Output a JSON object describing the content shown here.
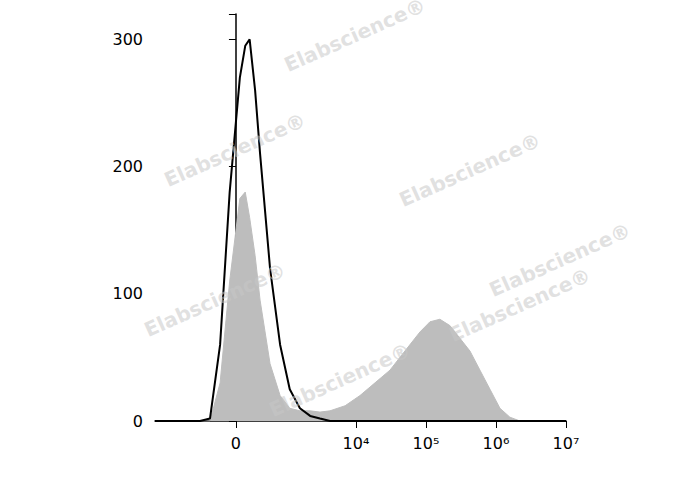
{
  "chart_data": {
    "type": "line",
    "watermark": "Elabscience®",
    "x": [
      -2750,
      -570,
      -370,
      -210,
      -80,
      50,
      120,
      180,
      260,
      340,
      530,
      780,
      1100,
      1560,
      2200,
      3050,
      4250,
      7000,
      11400,
      18700,
      30600,
      50000,
      82000,
      114000,
      158000,
      220000,
      306000,
      425000,
      590000,
      820000,
      1140000,
      1580000,
      2200000,
      4250000,
      10000000
    ],
    "series": [
      {
        "type": "area",
        "color": "#bdbdbd",
        "values": [
          0,
          0,
          0,
          30,
          110,
          175,
          180,
          160,
          130,
          95,
          45,
          20,
          10,
          8,
          8,
          7,
          8,
          12,
          20,
          30,
          40,
          55,
          70,
          78,
          80,
          75,
          65,
          55,
          40,
          25,
          10,
          3,
          0,
          0,
          0
        ]
      },
      {
        "type": "line",
        "color": "#000000",
        "values": [
          0,
          0,
          2,
          60,
          180,
          270,
          295,
          300,
          260,
          210,
          120,
          60,
          25,
          10,
          4,
          2,
          0,
          0,
          0,
          0,
          0,
          0,
          0,
          0,
          0,
          0,
          0,
          0,
          0,
          0,
          0,
          0,
          0,
          0,
          0
        ]
      }
    ],
    "xlim": [
      -2750,
      10000000
    ],
    "xticks": [
      0,
      {
        "value": 10000,
        "label": "10⁴"
      },
      {
        "value": 100000,
        "label": "10⁵"
      },
      {
        "value": 1000000,
        "label": "10⁶"
      },
      {
        "value": 10000000,
        "label": "10⁷"
      }
    ],
    "ylim": [
      0,
      320
    ],
    "yticks": [
      0,
      100,
      200,
      300
    ],
    "grid": false
  }
}
